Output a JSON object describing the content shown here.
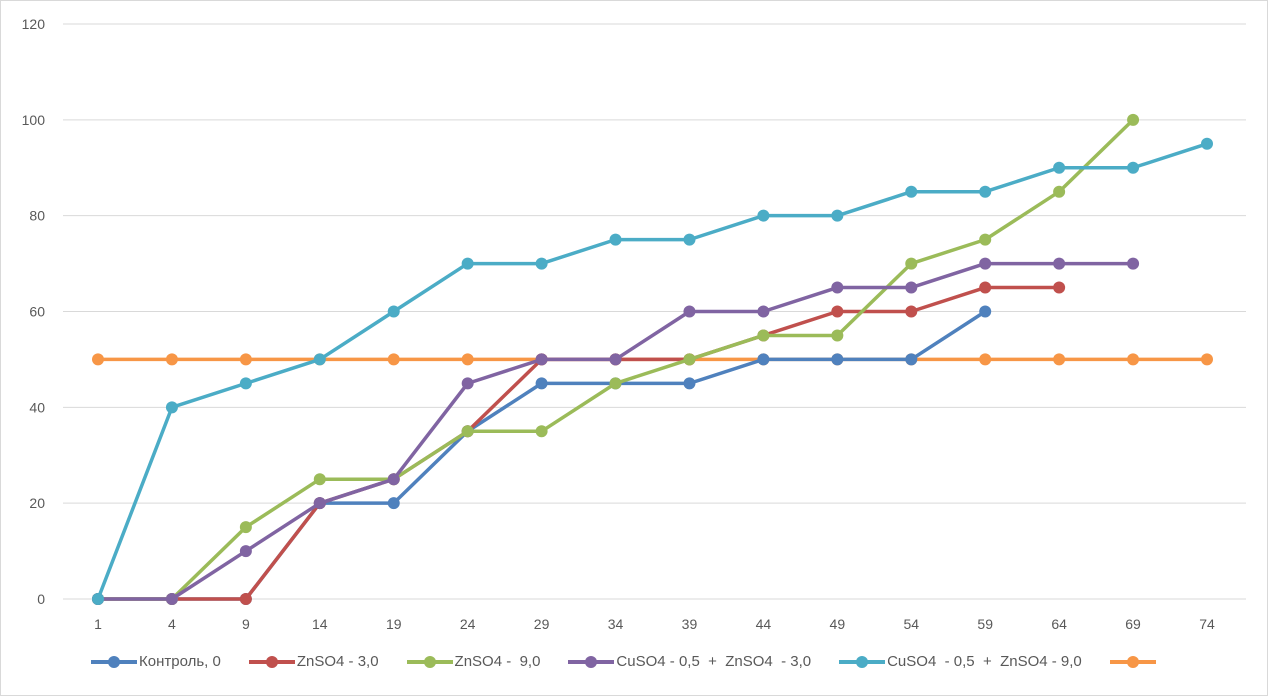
{
  "chart_data": {
    "type": "line",
    "title": "",
    "xlabel": "",
    "ylabel": "",
    "categories": [
      "1",
      "4",
      "9",
      "14",
      "19",
      "24",
      "29",
      "34",
      "39",
      "44",
      "49",
      "54",
      "59",
      "64",
      "69",
      "74"
    ],
    "ylim": [
      0,
      120
    ],
    "yticks": [
      "0",
      "20",
      "40",
      "60",
      "80",
      "100",
      "120"
    ],
    "grid": true,
    "legend_position": "bottom",
    "series": [
      {
        "name": "Контроль, 0",
        "color": "#4f81bd",
        "values": [
          0,
          0,
          0,
          20,
          20,
          35,
          45,
          45,
          45,
          50,
          50,
          50,
          60,
          null,
          null,
          null
        ]
      },
      {
        "name": "ZnSO4 - 3,0",
        "color": "#c0504d",
        "values": [
          0,
          0,
          0,
          20,
          25,
          35,
          50,
          50,
          50,
          55,
          60,
          60,
          65,
          65,
          null,
          null
        ]
      },
      {
        "name": "ZnSO4 -  9,0",
        "color": "#9bbb59",
        "values": [
          0,
          0,
          15,
          25,
          25,
          35,
          35,
          45,
          50,
          55,
          55,
          70,
          75,
          85,
          100,
          null
        ]
      },
      {
        "name": "CuSO4 - 0,5  +  ZnSO4  - 3,0",
        "color": "#8064a2",
        "values": [
          0,
          0,
          10,
          20,
          25,
          45,
          50,
          50,
          60,
          60,
          65,
          65,
          70,
          70,
          70,
          null
        ]
      },
      {
        "name": "CuSO4  - 0,5  +  ZnSO4 - 9,0",
        "color": "#4bacc6",
        "values": [
          0,
          40,
          45,
          50,
          60,
          70,
          70,
          75,
          75,
          80,
          80,
          85,
          85,
          90,
          90,
          95
        ]
      },
      {
        "name": "",
        "color": "#f79646",
        "values": [
          50,
          50,
          50,
          50,
          50,
          50,
          50,
          50,
          50,
          50,
          50,
          50,
          50,
          50,
          50,
          50
        ]
      }
    ]
  }
}
